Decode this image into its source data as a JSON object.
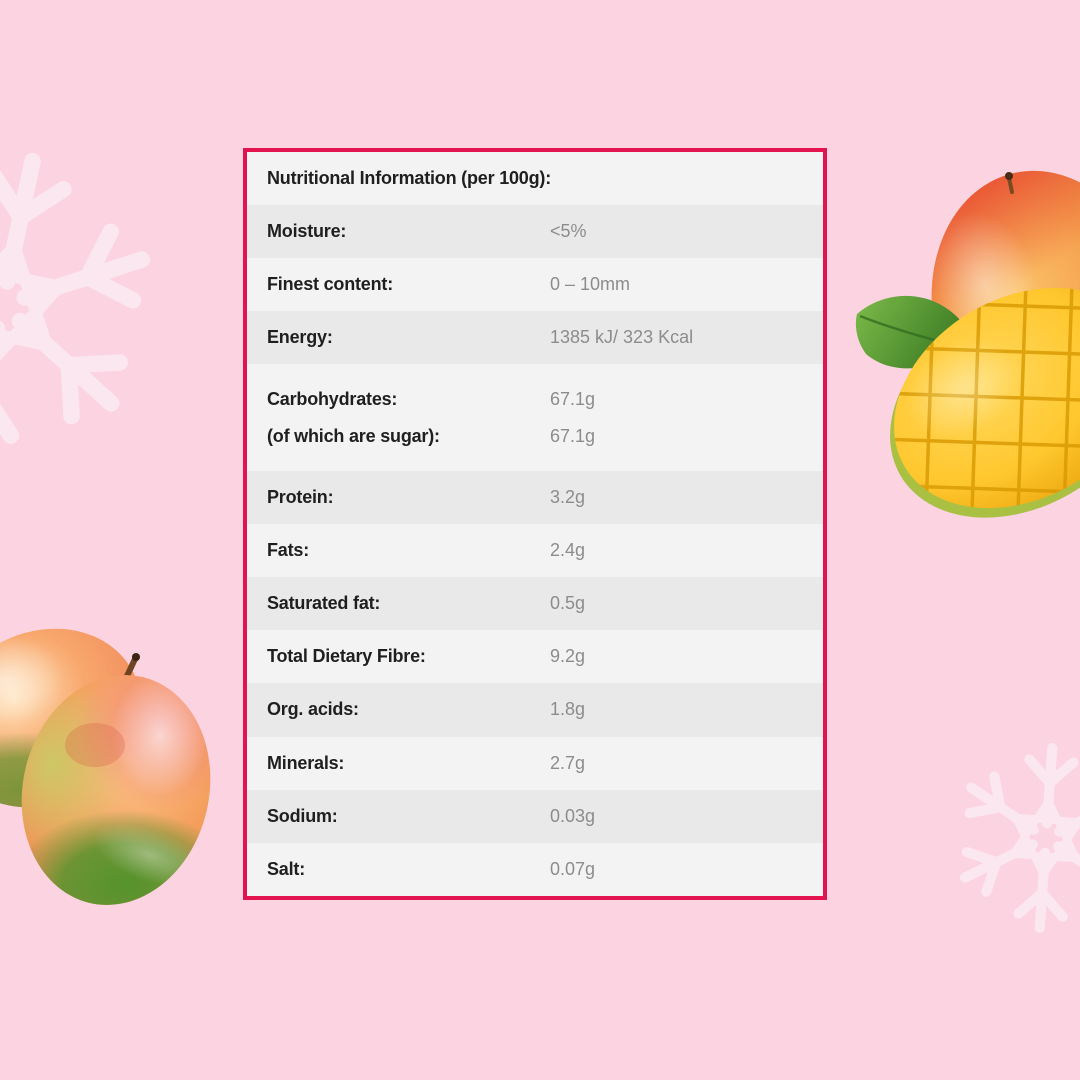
{
  "page": {
    "background_color": "#fcd3e1",
    "snowflake_color": "#fbe7f0"
  },
  "table": {
    "border_color": "#e2134e",
    "row_color_dark": "#e9e9e9",
    "row_color_light": "#f3f3f3",
    "label_color": "#1f1f1f",
    "value_color": "#8c8c8c",
    "header": "Nutritional Information (per 100g):",
    "rows": [
      {
        "lines": [
          {
            "label": "Moisture:",
            "value": "<5%"
          }
        ]
      },
      {
        "lines": [
          {
            "label": "Finest content:",
            "value": "0 – 10mm"
          }
        ]
      },
      {
        "lines": [
          {
            "label": "Energy:",
            "value": "1385 kJ/ 323 Kcal"
          }
        ]
      },
      {
        "lines": [
          {
            "label": "Carbohydrates:",
            "value": "67.1g"
          },
          {
            "label": "(of which are sugar):",
            "value": "67.1g"
          }
        ]
      },
      {
        "lines": [
          {
            "label": "Protein:",
            "value": "3.2g"
          }
        ]
      },
      {
        "lines": [
          {
            "label": "Fats:",
            "value": "2.4g"
          }
        ]
      },
      {
        "lines": [
          {
            "label": "Saturated fat:",
            "value": "0.5g"
          }
        ]
      },
      {
        "lines": [
          {
            "label": "Total Dietary Fibre:",
            "value": "9.2g"
          }
        ]
      },
      {
        "lines": [
          {
            "label": "Org. acids:",
            "value": "1.8g"
          }
        ]
      },
      {
        "lines": [
          {
            "label": "Minerals:",
            "value": "2.7g"
          }
        ]
      },
      {
        "lines": [
          {
            "label": "Sodium:",
            "value": "0.03g"
          }
        ]
      },
      {
        "lines": [
          {
            "label": "Salt:",
            "value": "0.07g"
          }
        ]
      }
    ]
  },
  "decorations": [
    {
      "name": "snowflake-top-left"
    },
    {
      "name": "snowflake-bottom-right"
    },
    {
      "name": "mangoes-bottom-left"
    },
    {
      "name": "mango-with-cut-half-top-right"
    }
  ]
}
